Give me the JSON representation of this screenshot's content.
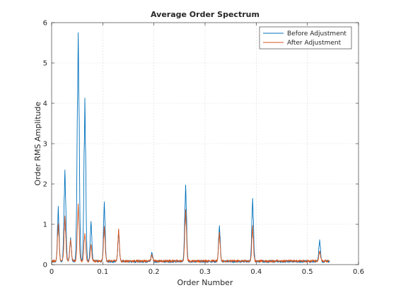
{
  "chart_data": {
    "type": "line",
    "title": "Average Order Spectrum",
    "xlabel": "Order Number",
    "ylabel": "Order RMS Amplitude",
    "xlim": [
      0,
      0.6
    ],
    "ylim": [
      0,
      6
    ],
    "xticks": [
      "0",
      "0.1",
      "0.2",
      "0.3",
      "0.4",
      "0.5",
      "0.6"
    ],
    "yticks": [
      "0",
      "1",
      "2",
      "3",
      "4",
      "5",
      "6"
    ],
    "grid": true,
    "legend_position": "top-right",
    "series": [
      {
        "name": "Before Adjustment",
        "color": "#0072BD",
        "baseline": 0.08,
        "x_end": 0.543,
        "peaks": [
          [
            0.013,
            1.42,
            0.0016
          ],
          [
            0.026,
            2.37,
            0.0018
          ],
          [
            0.037,
            0.65,
            0.0016
          ],
          [
            0.052,
            5.78,
            0.002
          ],
          [
            0.065,
            4.15,
            0.0018
          ],
          [
            0.077,
            1.1,
            0.0016
          ],
          [
            0.103,
            1.58,
            0.0016
          ],
          [
            0.131,
            0.85,
            0.0015
          ],
          [
            0.196,
            0.32,
            0.0015
          ],
          [
            0.262,
            2.0,
            0.0018
          ],
          [
            0.328,
            0.98,
            0.0016
          ],
          [
            0.393,
            1.67,
            0.0017
          ],
          [
            0.524,
            0.62,
            0.0016
          ]
        ]
      },
      {
        "name": "After Adjustment",
        "color": "#D95319",
        "baseline": 0.09,
        "x_end": 0.543,
        "peaks": [
          [
            0.013,
            1.05,
            0.0016
          ],
          [
            0.026,
            1.2,
            0.0017
          ],
          [
            0.037,
            0.65,
            0.0016
          ],
          [
            0.052,
            1.5,
            0.0018
          ],
          [
            0.065,
            0.8,
            0.0017
          ],
          [
            0.077,
            0.52,
            0.0015
          ],
          [
            0.103,
            0.95,
            0.0016
          ],
          [
            0.131,
            0.87,
            0.0015
          ],
          [
            0.196,
            0.25,
            0.0015
          ],
          [
            0.262,
            1.37,
            0.0017
          ],
          [
            0.328,
            0.8,
            0.0016
          ],
          [
            0.393,
            0.95,
            0.0016
          ],
          [
            0.524,
            0.35,
            0.0015
          ]
        ]
      }
    ]
  }
}
